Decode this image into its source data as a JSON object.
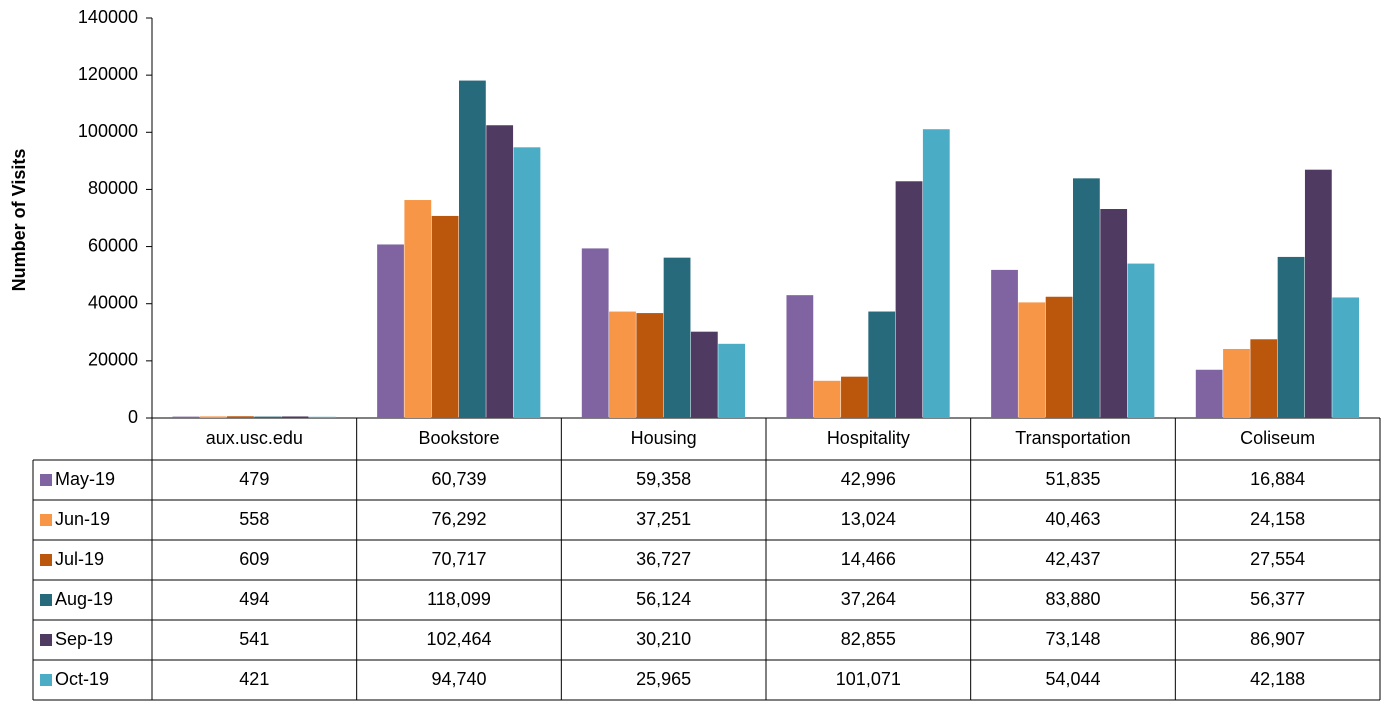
{
  "chart_data": {
    "type": "bar",
    "y_label": "Number of Visits",
    "categories": [
      "aux.usc.edu",
      "Bookstore",
      "Housing",
      "Hospitality",
      "Transportation",
      "Coliseum"
    ],
    "series": [
      {
        "name": "May-19",
        "color": "#8064a2",
        "values": [
          479,
          60739,
          59358,
          42996,
          51835,
          16884
        ],
        "value_labels": [
          "479",
          "60,739",
          "59,358",
          "42,996",
          "51,835",
          "16,884"
        ]
      },
      {
        "name": "Jun-19",
        "color": "#f79646",
        "values": [
          558,
          76292,
          37251,
          13024,
          40463,
          24158
        ],
        "value_labels": [
          "558",
          "76,292",
          "37,251",
          "13,024",
          "40,463",
          "24,158"
        ]
      },
      {
        "name": "Jul-19",
        "color": "#bb570c",
        "values": [
          609,
          70717,
          36727,
          14466,
          42437,
          27554
        ],
        "value_labels": [
          "609",
          "70,717",
          "36,727",
          "14,466",
          "42,437",
          "27,554"
        ]
      },
      {
        "name": "Aug-19",
        "color": "#276a7c",
        "values": [
          494,
          118099,
          56124,
          37264,
          83880,
          56377
        ],
        "value_labels": [
          "494",
          "118,099",
          "56,124",
          "37,264",
          "83,880",
          "56,377"
        ]
      },
      {
        "name": "Sep-19",
        "color": "#4f3b62",
        "values": [
          541,
          102464,
          30210,
          82855,
          73148,
          86907
        ],
        "value_labels": [
          "541",
          "102,464",
          "30,210",
          "82,855",
          "73,148",
          "86,907"
        ]
      },
      {
        "name": "Oct-19",
        "color": "#4bacc6",
        "values": [
          421,
          94740,
          25965,
          101071,
          54044,
          42188
        ],
        "value_labels": [
          "421",
          "94,740",
          "25,965",
          "101,071",
          "54,044",
          "42,188"
        ]
      }
    ],
    "ylim": [
      0,
      140000
    ],
    "yticks": [
      0,
      20000,
      40000,
      60000,
      80000,
      100000,
      120000,
      140000
    ],
    "grid": false
  }
}
